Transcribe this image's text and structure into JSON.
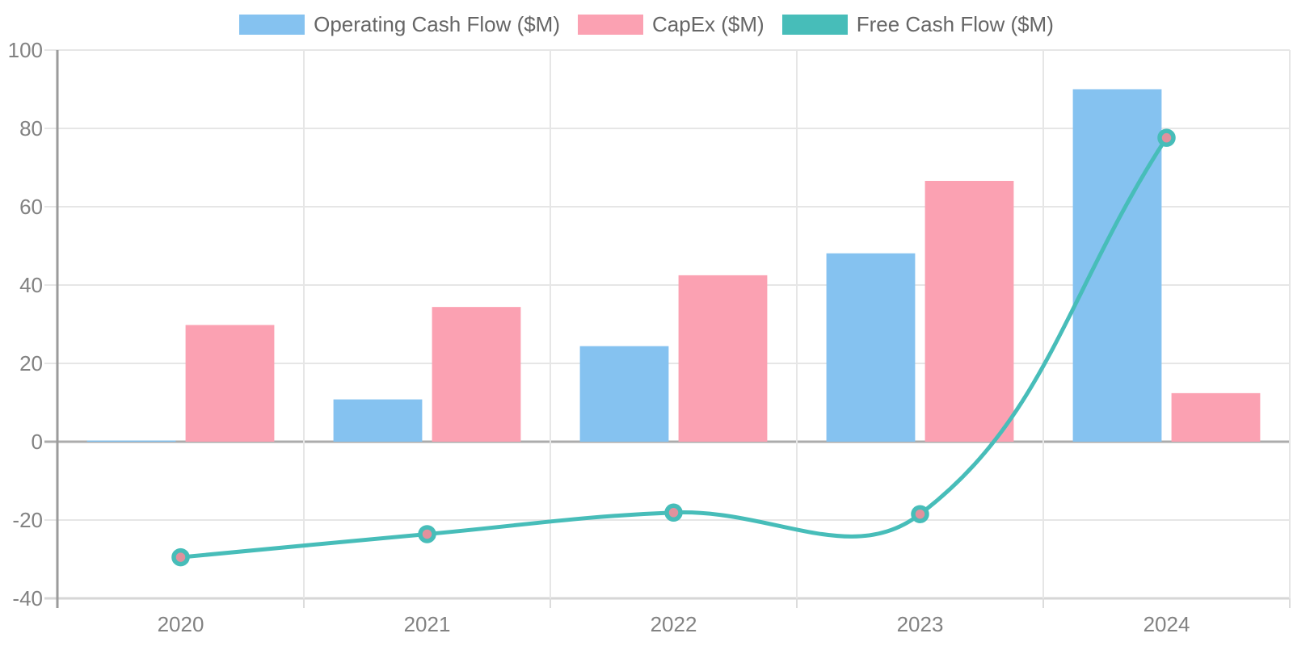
{
  "chart_data": {
    "type": "combo-bar-line",
    "title": "",
    "xlabel": "",
    "ylabel": "",
    "categories": [
      "2020",
      "2021",
      "2022",
      "2023",
      "2024"
    ],
    "series": [
      {
        "name": "Operating Cash Flow ($M)",
        "type": "bar",
        "color": "#85C2F0",
        "values": [
          0.3,
          10.8,
          24.4,
          48.1,
          90.0
        ]
      },
      {
        "name": "CapEx ($M)",
        "type": "bar",
        "color": "#FBA1B2",
        "values": [
          29.8,
          34.4,
          42.5,
          66.6,
          12.4
        ]
      },
      {
        "name": "Free Cash Flow ($M)",
        "type": "line",
        "color": "#47BDB9",
        "point_fill": "#E2919D",
        "line_tension": 0.4,
        "values": [
          -29.5,
          -23.6,
          -18.1,
          -18.5,
          77.6
        ]
      }
    ],
    "ylim": [
      -40,
      100
    ],
    "y_ticks": [
      100,
      80,
      60,
      40,
      20,
      0,
      -20,
      -40
    ],
    "grid": true,
    "legend_position": "top",
    "theme": {
      "background": "#FFFFFF",
      "gridline": "#E6E6E6",
      "zero_line": "#ACACAC",
      "axis_line": "#9B9B9B",
      "bottom_border": "#D6D6D6",
      "tick_stub": "#DCDCDC",
      "tick_text": "#828282",
      "legend_text": "#666666"
    }
  }
}
